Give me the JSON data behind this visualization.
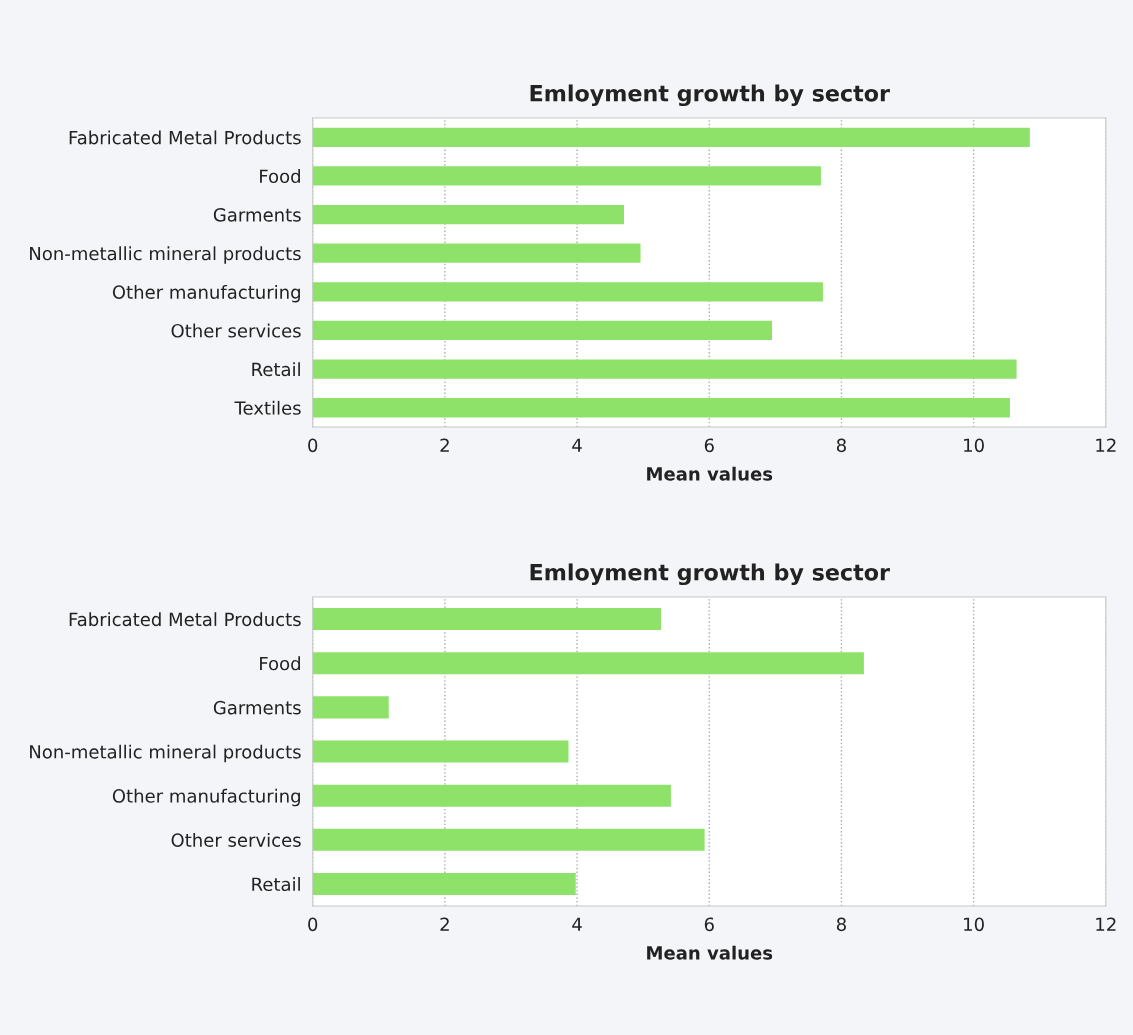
{
  "chart_data": [
    {
      "type": "bar",
      "orientation": "horizontal",
      "title": "Emloyment growth by sector",
      "xlabel": "Mean values",
      "categories": [
        "Fabricated Metal Products",
        "Food",
        "Garments",
        "Non-metallic mineral products",
        "Other manufacturing",
        "Other services",
        "Retail",
        "Textiles"
      ],
      "values": [
        10.85,
        7.69,
        4.71,
        4.96,
        7.72,
        6.95,
        10.65,
        10.55
      ],
      "color": "#8ee26a",
      "xlim": [
        0,
        12
      ],
      "xticks": [
        0,
        2,
        4,
        6,
        8,
        10,
        12
      ],
      "grid": "x"
    },
    {
      "type": "bar",
      "orientation": "horizontal",
      "title": "Emloyment growth by sector",
      "xlabel": "Mean values",
      "categories": [
        "Fabricated Metal Products",
        "Food",
        "Garments",
        "Non-metallic mineral products",
        "Other manufacturing",
        "Other services",
        "Retail"
      ],
      "values": [
        5.27,
        8.34,
        1.15,
        3.87,
        5.42,
        5.93,
        3.98
      ],
      "color": "#8ee26a",
      "xlim": [
        0,
        12
      ],
      "xticks": [
        0,
        2,
        4,
        6,
        8,
        10,
        12
      ],
      "grid": "x"
    }
  ]
}
